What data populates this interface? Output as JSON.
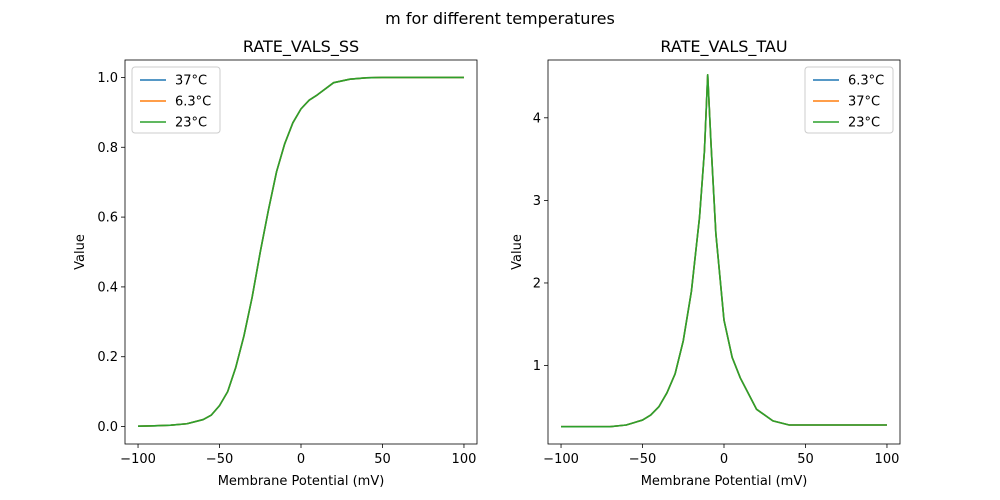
{
  "figure": {
    "suptitle": "m for different temperatures"
  },
  "chart_data": [
    {
      "type": "line",
      "title": "RATE_VALS_SS",
      "xlabel": "Membrane Potential (mV)",
      "ylabel": "Value",
      "xlim": [
        -108,
        108
      ],
      "ylim": [
        -0.05,
        1.05
      ],
      "xticks": [
        -100,
        -50,
        0,
        50,
        100
      ],
      "xtick_labels": [
        "−100",
        "−50",
        "0",
        "50",
        "100"
      ],
      "yticks": [
        0.0,
        0.2,
        0.4,
        0.6,
        0.8,
        1.0
      ],
      "ytick_labels": [
        "0.0",
        "0.2",
        "0.4",
        "0.6",
        "0.8",
        "1.0"
      ],
      "grid": false,
      "legend_position": "top-left",
      "series": [
        {
          "name": "37°C",
          "color": "#1f77b4",
          "x": [
            -100,
            -90,
            -80,
            -70,
            -60,
            -55,
            -50,
            -45,
            -40,
            -35,
            -30,
            -25,
            -20,
            -15,
            -10,
            -5,
            0,
            5,
            10,
            20,
            30,
            40,
            50,
            60,
            70,
            80,
            90,
            100
          ],
          "y": [
            0.001,
            0.002,
            0.004,
            0.008,
            0.02,
            0.033,
            0.06,
            0.1,
            0.17,
            0.26,
            0.37,
            0.5,
            0.62,
            0.73,
            0.81,
            0.87,
            0.91,
            0.935,
            0.95,
            0.985,
            0.995,
            0.999,
            1.0,
            1.0,
            1.0,
            1.0,
            1.0,
            1.0
          ]
        },
        {
          "name": "6.3°C",
          "color": "#ff7f0e",
          "x": [
            -100,
            -90,
            -80,
            -70,
            -60,
            -55,
            -50,
            -45,
            -40,
            -35,
            -30,
            -25,
            -20,
            -15,
            -10,
            -5,
            0,
            5,
            10,
            20,
            30,
            40,
            50,
            60,
            70,
            80,
            90,
            100
          ],
          "y": [
            0.001,
            0.002,
            0.004,
            0.008,
            0.02,
            0.033,
            0.06,
            0.1,
            0.17,
            0.26,
            0.37,
            0.5,
            0.62,
            0.73,
            0.81,
            0.87,
            0.91,
            0.935,
            0.95,
            0.985,
            0.995,
            0.999,
            1.0,
            1.0,
            1.0,
            1.0,
            1.0,
            1.0
          ]
        },
        {
          "name": "23°C",
          "color": "#2ca02c",
          "x": [
            -100,
            -90,
            -80,
            -70,
            -60,
            -55,
            -50,
            -45,
            -40,
            -35,
            -30,
            -25,
            -20,
            -15,
            -10,
            -5,
            0,
            5,
            10,
            20,
            30,
            40,
            50,
            60,
            70,
            80,
            90,
            100
          ],
          "y": [
            0.001,
            0.002,
            0.004,
            0.008,
            0.02,
            0.033,
            0.06,
            0.1,
            0.17,
            0.26,
            0.37,
            0.5,
            0.62,
            0.73,
            0.81,
            0.87,
            0.91,
            0.935,
            0.95,
            0.985,
            0.995,
            0.999,
            1.0,
            1.0,
            1.0,
            1.0,
            1.0,
            1.0
          ]
        }
      ]
    },
    {
      "type": "line",
      "title": "RATE_VALS_TAU",
      "xlabel": "Membrane Potential (mV)",
      "ylabel": "Value",
      "xlim": [
        -108,
        108
      ],
      "ylim": [
        0.05,
        4.7
      ],
      "xticks": [
        -100,
        -50,
        0,
        50,
        100
      ],
      "xtick_labels": [
        "−100",
        "−50",
        "0",
        "50",
        "100"
      ],
      "yticks": [
        1,
        2,
        3,
        4
      ],
      "ytick_labels": [
        "1",
        "2",
        "3",
        "4"
      ],
      "grid": false,
      "legend_position": "top-right",
      "series": [
        {
          "name": "6.3°C",
          "color": "#1f77b4",
          "x": [
            -100,
            -90,
            -80,
            -70,
            -60,
            -50,
            -45,
            -40,
            -35,
            -30,
            -25,
            -20,
            -15,
            -12,
            -10,
            -8,
            -5,
            0,
            5,
            10,
            20,
            30,
            40,
            50,
            60,
            70,
            80,
            90,
            100
          ],
          "y": [
            0.26,
            0.26,
            0.26,
            0.26,
            0.28,
            0.34,
            0.4,
            0.5,
            0.67,
            0.9,
            1.3,
            1.9,
            2.8,
            3.6,
            4.52,
            3.7,
            2.6,
            1.55,
            1.1,
            0.85,
            0.47,
            0.33,
            0.28,
            0.28,
            0.28,
            0.28,
            0.28,
            0.28,
            0.28
          ]
        },
        {
          "name": "37°C",
          "color": "#ff7f0e",
          "x": [
            -100,
            -90,
            -80,
            -70,
            -60,
            -50,
            -45,
            -40,
            -35,
            -30,
            -25,
            -20,
            -15,
            -12,
            -10,
            -8,
            -5,
            0,
            5,
            10,
            20,
            30,
            40,
            50,
            60,
            70,
            80,
            90,
            100
          ],
          "y": [
            0.26,
            0.26,
            0.26,
            0.26,
            0.28,
            0.34,
            0.4,
            0.5,
            0.67,
            0.9,
            1.3,
            1.9,
            2.8,
            3.6,
            4.52,
            3.7,
            2.6,
            1.55,
            1.1,
            0.85,
            0.47,
            0.33,
            0.28,
            0.28,
            0.28,
            0.28,
            0.28,
            0.28,
            0.28
          ]
        },
        {
          "name": "23°C",
          "color": "#2ca02c",
          "x": [
            -100,
            -90,
            -80,
            -70,
            -60,
            -50,
            -45,
            -40,
            -35,
            -30,
            -25,
            -20,
            -15,
            -12,
            -10,
            -8,
            -5,
            0,
            5,
            10,
            20,
            30,
            40,
            50,
            60,
            70,
            80,
            90,
            100
          ],
          "y": [
            0.26,
            0.26,
            0.26,
            0.26,
            0.28,
            0.34,
            0.4,
            0.5,
            0.67,
            0.9,
            1.3,
            1.9,
            2.8,
            3.6,
            4.52,
            3.7,
            2.6,
            1.55,
            1.1,
            0.85,
            0.47,
            0.33,
            0.28,
            0.28,
            0.28,
            0.28,
            0.28,
            0.28,
            0.28
          ]
        }
      ]
    }
  ]
}
